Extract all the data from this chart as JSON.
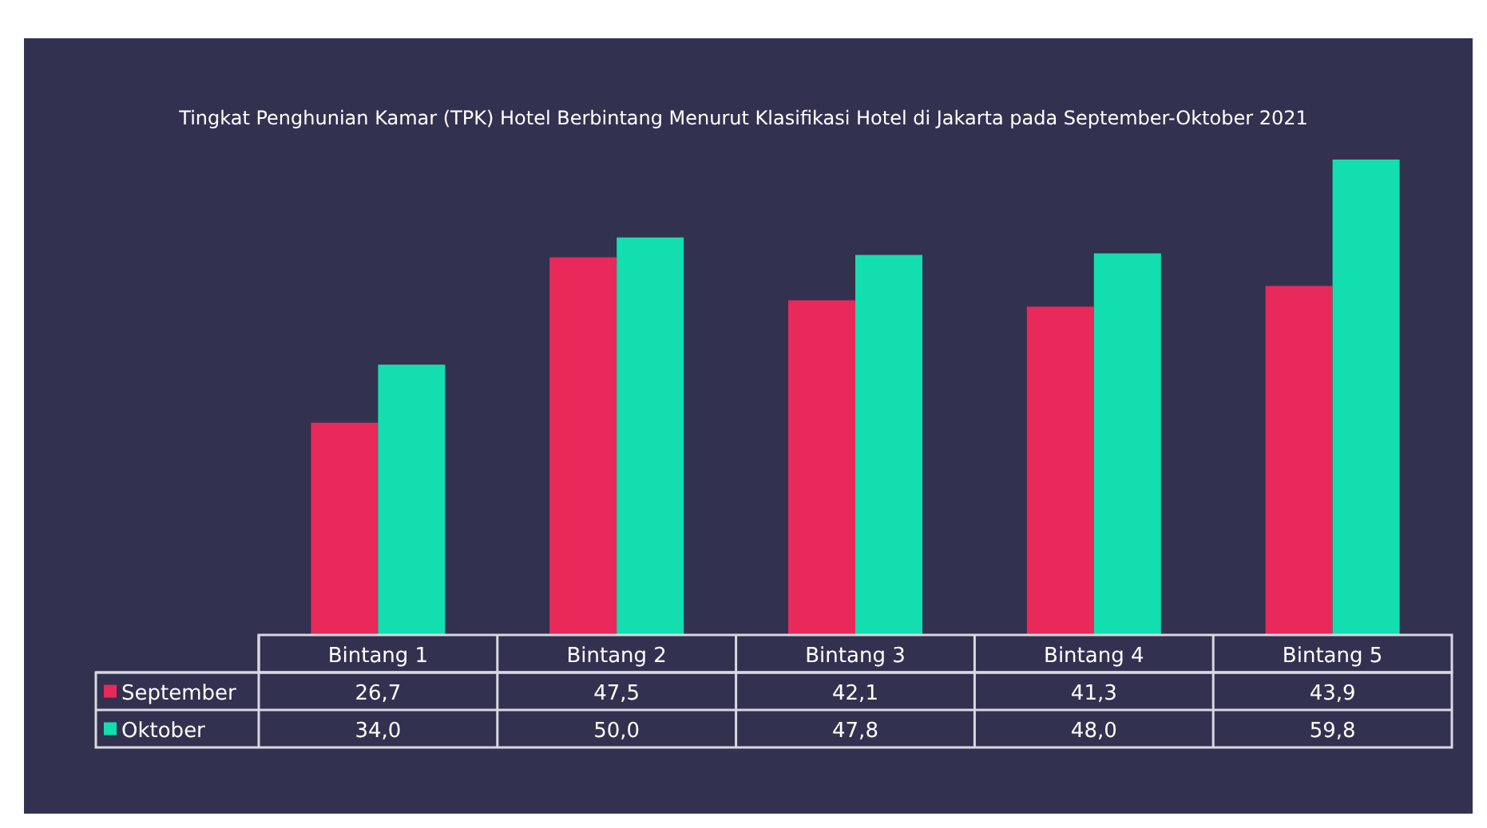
{
  "chart_data": {
    "type": "bar",
    "title": "Tingkat Penghunian Kamar (TPK) Hotel Berbintang Menurut Klasifikasi Hotel di Jakarta pada September-Oktober 2021",
    "categories": [
      "Bintang 1",
      "Bintang 2",
      "Bintang 3",
      "Bintang 4",
      "Bintang 5"
    ],
    "series": [
      {
        "name": "September",
        "color": "#e8295a",
        "values": [
          26.7,
          47.5,
          42.1,
          41.3,
          43.9
        ],
        "value_labels": [
          "26,7",
          "47,5",
          "42,1",
          "41,3",
          "43,9"
        ]
      },
      {
        "name": "Oktober",
        "color": "#13deaf",
        "values": [
          34.0,
          50.0,
          47.8,
          48.0,
          59.8
        ],
        "value_labels": [
          "34,0",
          "50,0",
          "47,8",
          "48,0",
          "59,8"
        ]
      }
    ],
    "legend": "bottom"
  }
}
